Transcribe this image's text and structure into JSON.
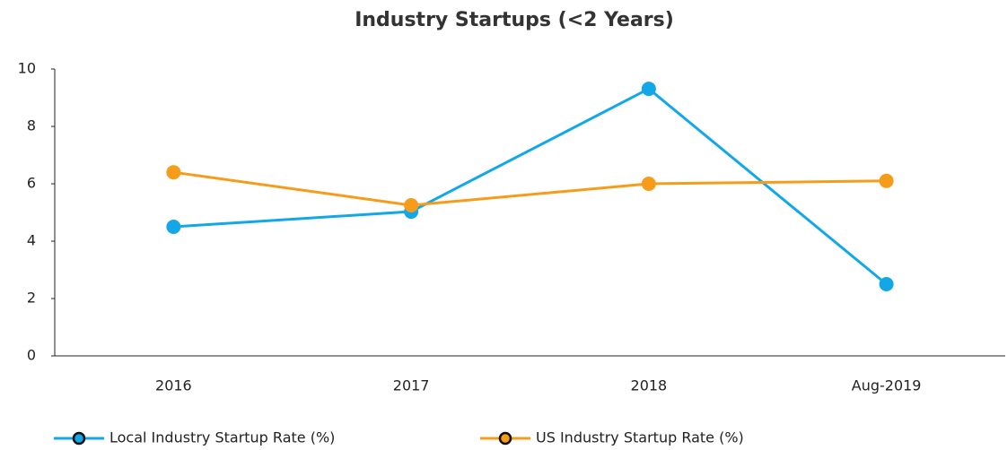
{
  "chart_data": {
    "type": "line",
    "title": "Industry Startups (<2 Years)",
    "categories": [
      "2016",
      "2017",
      "2018",
      "Aug-2019"
    ],
    "series": [
      {
        "name": "Local Industry Startup Rate (%)",
        "color": "#12a8e8",
        "values": [
          4.5,
          5.03,
          9.31,
          2.5
        ]
      },
      {
        "name": "US Industry Startup Rate (%)",
        "color": "#f59c1a",
        "values": [
          6.4,
          5.25,
          6.0,
          6.1
        ]
      }
    ],
    "ylim": [
      0,
      10
    ],
    "yticks": [
      0,
      2,
      4,
      6,
      8,
      10
    ],
    "grid": false,
    "legend": "bottom"
  }
}
